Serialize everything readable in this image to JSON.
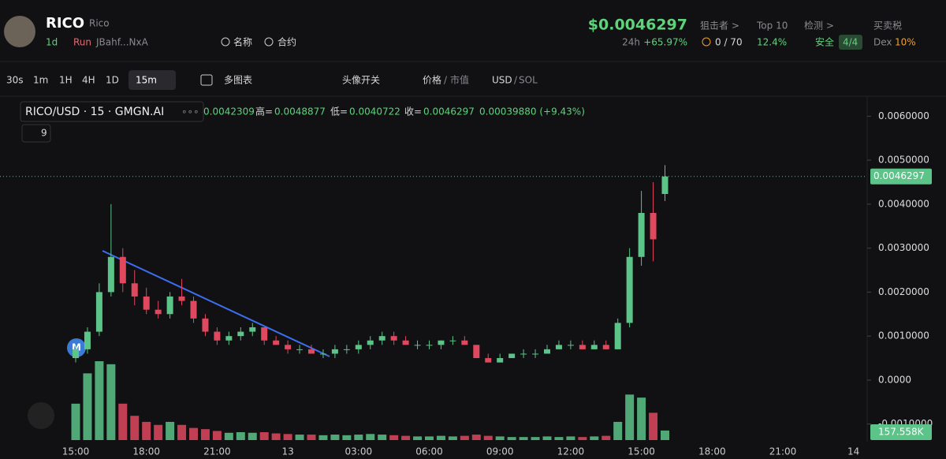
{
  "header": {
    "symbol": "RICO",
    "name": "Rico",
    "age": "1d",
    "launch": "Run",
    "address": "JBahf...NxA",
    "search_name": "名称",
    "search_contract": "合约",
    "price": "$0.0046297",
    "change_period": "24h",
    "change": "+65.97%",
    "snipers_label": "狙击者 >",
    "snipers": "0 / 70",
    "top10_label": "Top 10",
    "top10": "12.4%",
    "check_label": "检测 >",
    "check_status": "安全",
    "check_score": "4/4",
    "tax_label": "买卖税",
    "tax_venue": "Dex",
    "tax": "10%"
  },
  "toolbar": {
    "intervals": [
      "30s",
      "1m",
      "1H",
      "4H",
      "1D"
    ],
    "selected_interval": "15m",
    "multi_chart": "多图表",
    "avatar_toggle": "头像开关",
    "price": "价格",
    "market_cap": "市值",
    "currency": "USD",
    "alt_currency": "SOL"
  },
  "legend": {
    "title": "RICO/USD · 15 · GMGN.AI",
    "open": "0.0042309",
    "high_label": "高=",
    "high": "0.0048877",
    "low_label": "低=",
    "low": "0.0040722",
    "close_label": "收=",
    "close": "0.0046297",
    "change": "0.00039880 (+9.43%)",
    "indicators_count": "9",
    "marker": "M"
  },
  "chart_data": {
    "type": "candlestick",
    "up_color": "#5cc389",
    "down_color": "#e0485f",
    "open": [
      0.0005,
      0.0007,
      0.0011,
      0.002,
      0.0028,
      0.0022,
      0.0019,
      0.0016,
      0.0015,
      0.0019,
      0.0018,
      0.0014,
      0.0011,
      0.0009,
      0.001,
      0.0011,
      0.0012,
      0.0009,
      0.0008,
      0.0007,
      0.0007,
      0.0006,
      0.0006,
      0.0007,
      0.0007,
      0.0008,
      0.0009,
      0.001,
      0.0009,
      0.0008,
      0.0008,
      0.0008,
      0.0009,
      0.0009,
      0.0008,
      0.0005,
      0.0004,
      0.0005,
      0.0006,
      0.0006,
      0.0006,
      0.0007,
      0.0008,
      0.0008,
      0.0007,
      0.0008,
      0.0007,
      0.0013,
      0.0028,
      0.0038,
      0.0042309
    ],
    "high": [
      0.0008,
      0.0012,
      0.0022,
      0.004,
      0.003,
      0.0025,
      0.0021,
      0.0018,
      0.002,
      0.0023,
      0.0019,
      0.0015,
      0.0012,
      0.0011,
      0.0012,
      0.0013,
      0.0012,
      0.001,
      0.0009,
      0.0008,
      0.0008,
      0.0007,
      0.0008,
      0.0008,
      0.0009,
      0.001,
      0.0011,
      0.0011,
      0.001,
      0.0009,
      0.0009,
      0.0009,
      0.001,
      0.001,
      0.0008,
      0.0006,
      0.0006,
      0.0006,
      0.0007,
      0.0007,
      0.0008,
      0.0009,
      0.0009,
      0.0009,
      0.0009,
      0.0009,
      0.0014,
      0.003,
      0.0043,
      0.0045,
      0.0048877
    ],
    "low": [
      0.0004,
      0.0006,
      0.001,
      0.0019,
      0.002,
      0.0017,
      0.0015,
      0.0014,
      0.0014,
      0.0017,
      0.0013,
      0.001,
      0.0008,
      0.0008,
      0.0009,
      0.001,
      0.0008,
      0.0008,
      0.0006,
      0.0006,
      0.0006,
      0.0005,
      0.0005,
      0.0006,
      0.0006,
      0.0007,
      0.0008,
      0.0008,
      0.0008,
      0.0007,
      0.0007,
      0.0007,
      0.0008,
      0.0008,
      0.0005,
      0.0004,
      0.0004,
      0.0005,
      0.0005,
      0.0005,
      0.0006,
      0.0007,
      0.0007,
      0.0007,
      0.0007,
      0.0007,
      0.0007,
      0.0012,
      0.0026,
      0.0027,
      0.0040722
    ],
    "close": [
      0.0007,
      0.0011,
      0.002,
      0.0028,
      0.0022,
      0.0019,
      0.0016,
      0.0015,
      0.0019,
      0.0018,
      0.0014,
      0.0011,
      0.0009,
      0.001,
      0.0011,
      0.0012,
      0.0009,
      0.0008,
      0.0007,
      0.0007,
      0.0006,
      0.0006,
      0.0007,
      0.0007,
      0.0008,
      0.0009,
      0.001,
      0.0009,
      0.0008,
      0.0008,
      0.0008,
      0.0009,
      0.0009,
      0.0008,
      0.0005,
      0.0004,
      0.0005,
      0.0006,
      0.0006,
      0.0006,
      0.0007,
      0.0008,
      0.0008,
      0.0007,
      0.0008,
      0.0007,
      0.0013,
      0.0028,
      0.0038,
      0.0032,
      0.0046297
    ],
    "volume": [
      600,
      1100,
      1300,
      1250,
      600,
      400,
      300,
      250,
      300,
      250,
      200,
      180,
      150,
      120,
      130,
      120,
      130,
      110,
      100,
      90,
      90,
      80,
      90,
      80,
      90,
      100,
      90,
      80,
      70,
      60,
      60,
      70,
      60,
      70,
      90,
      70,
      60,
      50,
      50,
      50,
      60,
      50,
      60,
      50,
      60,
      70,
      300,
      750,
      700,
      450,
      157.558
    ],
    "last_volume_label": "157.558K",
    "last_price": 0.0046297,
    "ylim": [
      -0.0014,
      0.0064
    ],
    "yticks": [
      {
        "value": 0.006,
        "label": "0.0060000"
      },
      {
        "value": 0.005,
        "label": "0.0050000"
      },
      {
        "value": 0.004,
        "label": "0.0040000"
      },
      {
        "value": 0.003,
        "label": "0.0030000"
      },
      {
        "value": 0.002,
        "label": "0.0020000"
      },
      {
        "value": 0.001,
        "label": "0.0010000"
      },
      {
        "value": 0,
        "label": "0.0000"
      },
      {
        "value": -0.001,
        "label": "-0.0010000"
      }
    ],
    "xtick_labels": [
      "15:00",
      "18:00",
      "21:00",
      "13",
      "03:00",
      "06:00",
      "09:00",
      "12:00",
      "15:00",
      "18:00",
      "21:00",
      "14"
    ]
  }
}
